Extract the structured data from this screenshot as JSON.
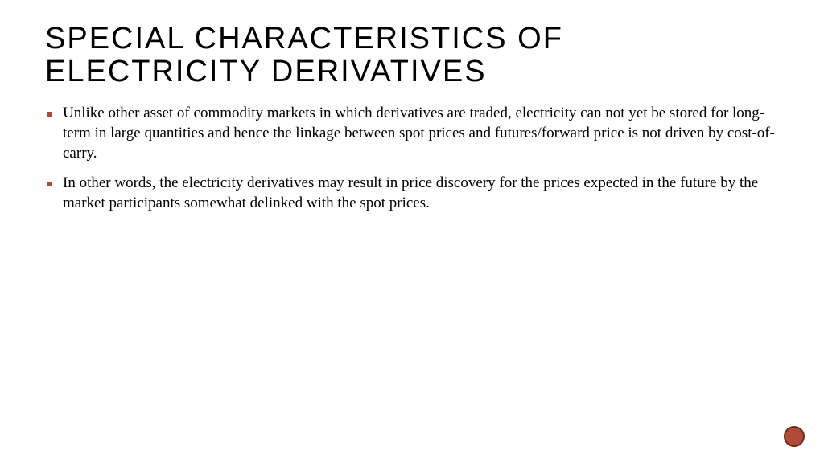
{
  "title": "SPECIAL CHARACTERISTICS OF ELECTRICITY DERIVATIVES",
  "title_fontsize": 38,
  "title_color": "#000000",
  "title_letter_spacing": 2,
  "bullets": [
    "Unlike other asset of commodity markets in which derivatives are traded, electricity can not yet be stored for long-term in large quantities and hence the linkage between spot prices and futures/forward price is not driven by cost-of-carry.",
    "In other words, the electricity derivatives may result in price discovery for the prices expected in the future by the market participants somewhat delinked with the spot prices."
  ],
  "body_fontsize": 19,
  "body_color": "#000000",
  "bullet_marker_color": "#a84a3a",
  "background_color": "#ffffff",
  "corner_circle": {
    "fill": "#b24a3a",
    "stroke": "#6e2a1f",
    "stroke_width": 2,
    "diameter": 26
  }
}
